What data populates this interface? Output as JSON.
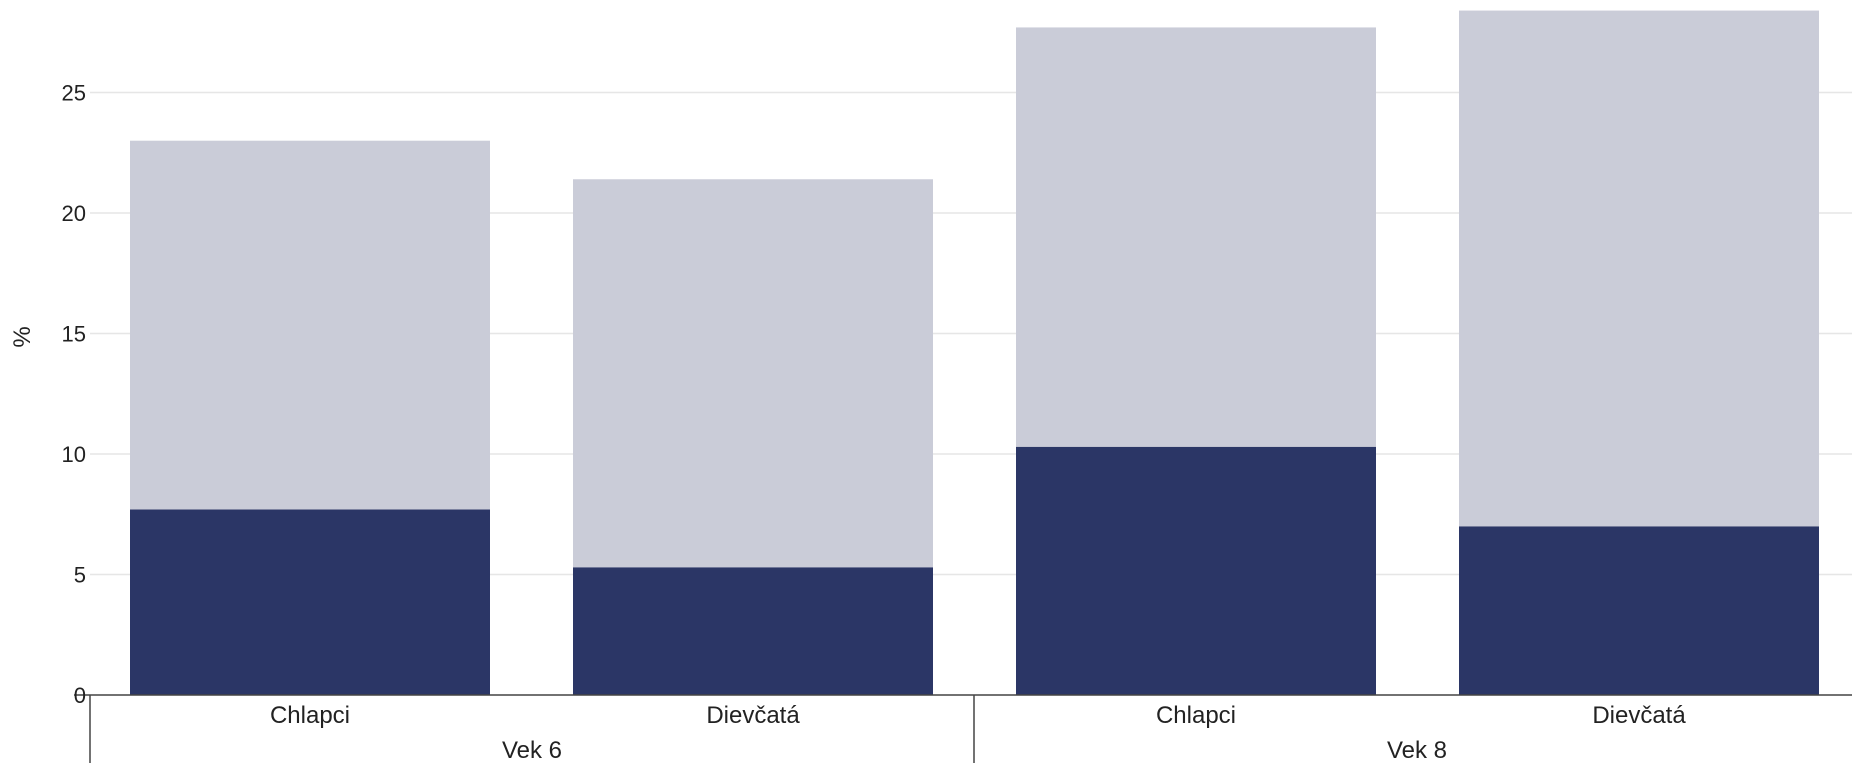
{
  "chart_data": {
    "type": "bar",
    "stacked": true,
    "ylabel": "%",
    "ylim": [
      0,
      28.5
    ],
    "yticks": [
      0,
      5,
      10,
      15,
      20,
      25
    ],
    "grid": true,
    "groups": [
      {
        "label": "Vek 6",
        "categories": [
          "Chlapci",
          "Dievčatá"
        ]
      },
      {
        "label": "Vek 8",
        "categories": [
          "Chlapci",
          "Dievčatá"
        ]
      }
    ],
    "categories": [
      "Chlapci",
      "Dievčatá",
      "Chlapci",
      "Dievčatá"
    ],
    "series": [
      {
        "values": [
          7.7,
          5.3,
          10.3,
          7.0
        ],
        "color": "#2b3666"
      },
      {
        "values": [
          15.3,
          16.1,
          17.4,
          21.4
        ],
        "color": "#caccd8"
      }
    ]
  }
}
